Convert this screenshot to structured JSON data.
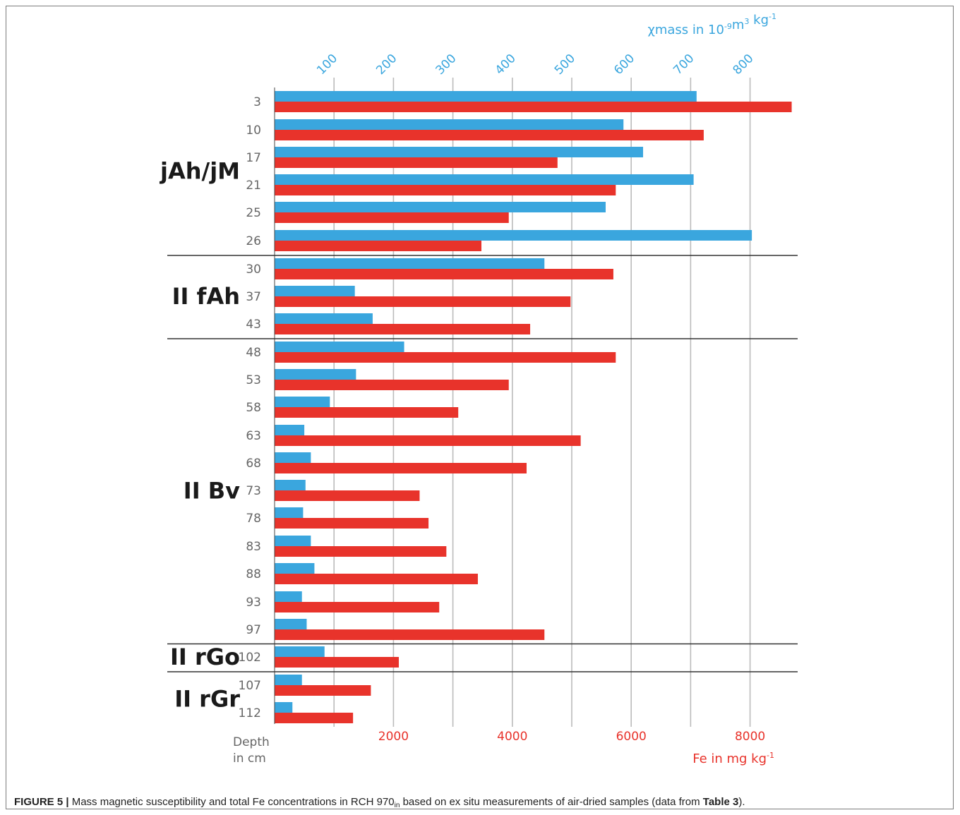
{
  "caption": {
    "figure_label": "FIGURE 5 |",
    "text_before_sub": "Mass magnetic susceptibility and total Fe concentrations in RCH 970",
    "sub": "in",
    "text_after_sub": "based on ex situ measurements of air-dried samples (data from",
    "table_ref": "Table 3",
    "text_end": ")."
  },
  "chart_data": {
    "type": "bar",
    "orientation": "horizontal",
    "depth_axis_label": [
      "Depth",
      "in cm"
    ],
    "categories": [
      "3",
      "10",
      "17",
      "21",
      "25",
      "26",
      "30",
      "37",
      "43",
      "48",
      "53",
      "58",
      "63",
      "68",
      "73",
      "78",
      "83",
      "88",
      "93",
      "97",
      "102",
      "107",
      "112"
    ],
    "horizons": [
      {
        "name": "jAh/jM",
        "from": "3",
        "to": "26"
      },
      {
        "name": "II fAh",
        "from": "30",
        "to": "43"
      },
      {
        "name": "II Bv",
        "from": "48",
        "to": "97"
      },
      {
        "name": "II rGo",
        "from": "102",
        "to": "102"
      },
      {
        "name": "II rGr",
        "from": "107",
        "to": "112"
      }
    ],
    "series": [
      {
        "name": "χmass",
        "axis": "top",
        "color": "#3aa6de",
        "values": [
          710,
          587,
          620,
          705,
          557,
          803,
          454,
          135,
          165,
          218,
          137,
          93,
          50,
          61,
          52,
          48,
          61,
          67,
          46,
          54,
          84,
          46,
          30
        ]
      },
      {
        "name": "Fe",
        "axis": "bottom",
        "color": "#e8332b",
        "values": [
          8700,
          7220,
          4760,
          5740,
          3940,
          3480,
          5700,
          4980,
          4300,
          5740,
          3940,
          3090,
          5150,
          4240,
          2440,
          2590,
          2890,
          3420,
          2770,
          4540,
          2090,
          1620,
          1320
        ]
      }
    ],
    "top_axis": {
      "title": "χmass in 10",
      "title_sup1": "-9",
      "title_mid": "m",
      "title_sup2": "3",
      "title_end": " kg",
      "title_sup3": "-1",
      "ticks": [
        "100",
        "200",
        "300",
        "400",
        "500",
        "600",
        "700",
        "800"
      ],
      "range": [
        0,
        880
      ],
      "color": "#3aa6de"
    },
    "bottom_axis": {
      "title": "Fe in mg kg",
      "title_sup": "-1",
      "ticks": [
        "2000",
        "4000",
        "6000",
        "8000"
      ],
      "range": [
        0,
        8800
      ],
      "color": "#e8332b"
    },
    "grid": true,
    "grid_color": "#bbbbbb"
  }
}
